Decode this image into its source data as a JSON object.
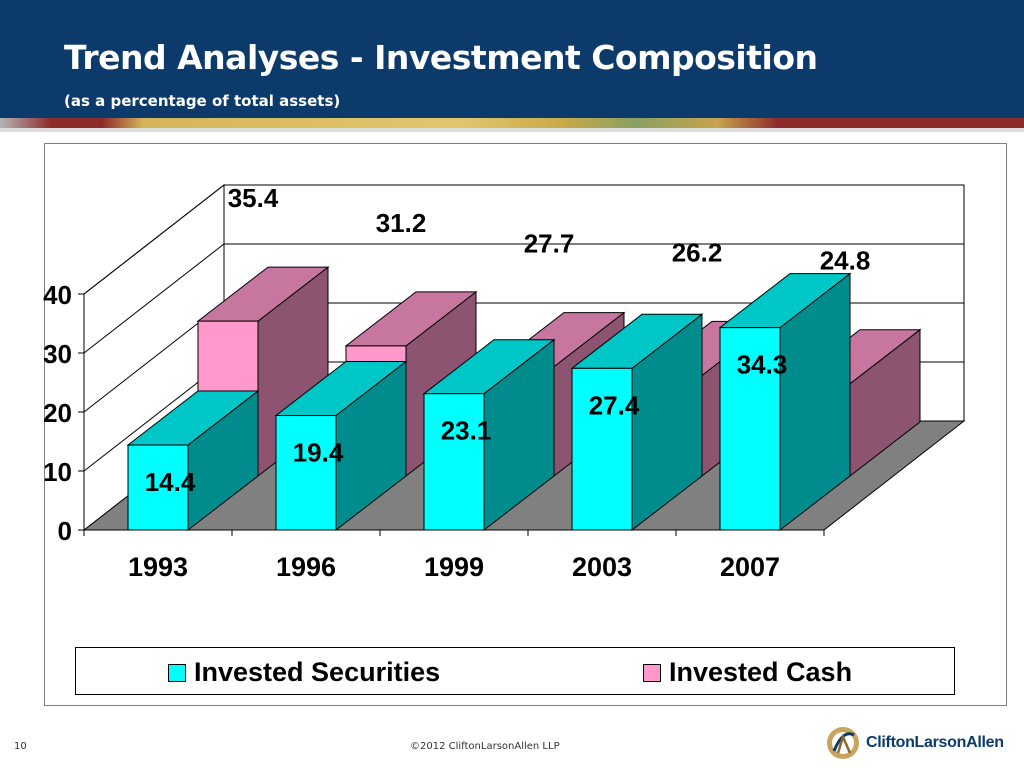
{
  "header": {
    "title": "Trend Analyses - Investment Composition",
    "subtitle": "(as a percentage of total assets)"
  },
  "footer": {
    "page_number": "10",
    "copyright": "©2012 CliftonLarsonAllen LLP",
    "logo_text": "CliftonLarsonAllen"
  },
  "colors": {
    "header_bg": "#0b3a6b",
    "securities": "#00ffff",
    "cash": "#ff99cc",
    "floor": "#808080"
  },
  "chart_data": {
    "type": "bar",
    "style": "3d-clustered",
    "categories": [
      "1993",
      "1996",
      "1999",
      "2003",
      "2007"
    ],
    "series": [
      {
        "name": "Invested Securities",
        "values": [
          14.4,
          19.4,
          23.1,
          27.4,
          34.3
        ],
        "color": "#00ffff",
        "labels": [
          "14.4",
          "19.4",
          "23.1",
          "27.4",
          "34.3"
        ]
      },
      {
        "name": "Invested Cash",
        "values": [
          35.4,
          31.2,
          27.7,
          26.2,
          24.8
        ],
        "color": "#ff99cc",
        "labels": [
          "35.4",
          "31.2",
          "27.7",
          "26.2",
          "24.8"
        ]
      }
    ],
    "yticks": [
      "0",
      "10",
      "20",
      "30",
      "40"
    ],
    "ylim": [
      0,
      40
    ],
    "grid": true,
    "legend_position": "bottom"
  }
}
